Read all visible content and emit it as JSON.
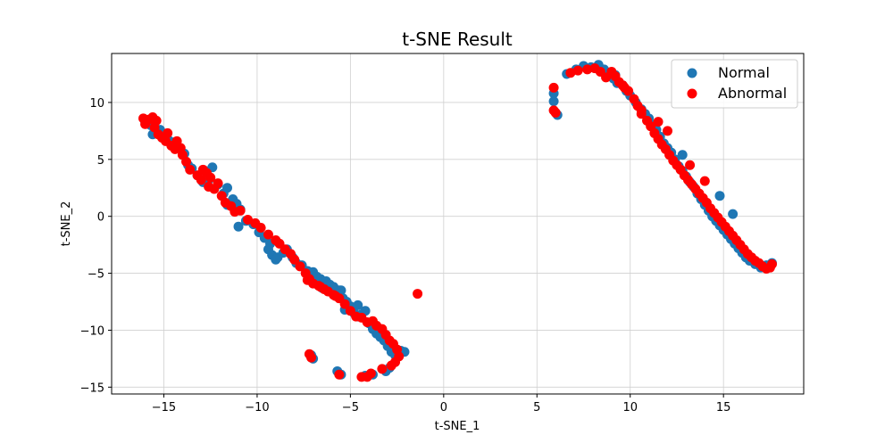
{
  "chart_data": {
    "type": "scatter",
    "title": "t-SNE Result",
    "xlabel": "t-SNE_1",
    "ylabel": "t-SNE_2",
    "xlim": [
      -17.8,
      19.3
    ],
    "ylim": [
      -15.6,
      14.3
    ],
    "xticks": [
      -15,
      -10,
      -5,
      0,
      5,
      10,
      15
    ],
    "xtick_labels": [
      "−15",
      "−10",
      "−5",
      "0",
      "5",
      "10",
      "15"
    ],
    "yticks": [
      -15,
      -10,
      -5,
      0,
      5,
      10
    ],
    "ytick_labels": [
      "−15",
      "−10",
      "−5",
      "0",
      "5",
      "10"
    ],
    "grid": true,
    "legend_position": "top-right",
    "series": [
      {
        "name": "Normal",
        "color": "#1f77b4",
        "points": [
          [
            -16.0,
            8.3
          ],
          [
            -15.7,
            8.0
          ],
          [
            -15.6,
            7.2
          ],
          [
            -15.2,
            7.6
          ],
          [
            -15.0,
            7.0
          ],
          [
            -14.8,
            6.8
          ],
          [
            -14.5,
            6.5
          ],
          [
            -14.2,
            6.0
          ],
          [
            -13.9,
            5.5
          ],
          [
            -13.7,
            4.5
          ],
          [
            -13.5,
            4.2
          ],
          [
            -13.2,
            3.6
          ],
          [
            -12.8,
            4.0
          ],
          [
            -12.6,
            3.2
          ],
          [
            -12.4,
            4.3
          ],
          [
            -12.1,
            2.8
          ],
          [
            -11.8,
            2.0
          ],
          [
            -11.6,
            2.5
          ],
          [
            -11.3,
            1.5
          ],
          [
            -11.1,
            1.1
          ],
          [
            -10.9,
            0.6
          ],
          [
            -11.0,
            -0.9
          ],
          [
            -10.6,
            -0.4
          ],
          [
            -10.2,
            -0.7
          ],
          [
            -9.9,
            -1.4
          ],
          [
            -9.6,
            -1.9
          ],
          [
            -9.3,
            -2.4
          ],
          [
            -9.4,
            -2.9
          ],
          [
            -9.2,
            -3.4
          ],
          [
            -8.9,
            -3.6
          ],
          [
            -8.6,
            -3.2
          ],
          [
            -8.4,
            -2.9
          ],
          [
            -8.1,
            -3.6
          ],
          [
            -7.9,
            -4.1
          ],
          [
            -7.6,
            -4.3
          ],
          [
            -7.3,
            -4.8
          ],
          [
            -7.0,
            -4.9
          ],
          [
            -6.9,
            -5.7
          ],
          [
            -6.6,
            -5.5
          ],
          [
            -6.3,
            -5.7
          ],
          [
            -6.1,
            -6.0
          ],
          [
            -5.9,
            -6.2
          ],
          [
            -5.6,
            -6.5
          ],
          [
            -5.4,
            -7.2
          ],
          [
            -5.2,
            -7.5
          ],
          [
            -5.0,
            -7.9
          ],
          [
            -4.8,
            -8.5
          ],
          [
            -4.6,
            -8.8
          ],
          [
            -4.4,
            -8.6
          ],
          [
            -4.2,
            -8.3
          ],
          [
            -4.0,
            -9.4
          ],
          [
            -3.8,
            -9.9
          ],
          [
            -3.6,
            -10.3
          ],
          [
            -3.4,
            -10.6
          ],
          [
            -3.2,
            -10.9
          ],
          [
            -3.0,
            -11.4
          ],
          [
            -2.8,
            -11.9
          ],
          [
            -2.6,
            -12.2
          ],
          [
            -2.3,
            -11.8
          ],
          [
            -2.1,
            -11.9
          ],
          [
            -2.9,
            -13.3
          ],
          [
            -3.1,
            -13.6
          ],
          [
            -3.8,
            -13.9
          ],
          [
            -4.2,
            -14.0
          ],
          [
            -5.7,
            -13.6
          ],
          [
            -5.5,
            -13.9
          ],
          [
            -7.1,
            -12.2
          ],
          [
            -7.0,
            -12.5
          ],
          [
            -5.3,
            -8.2
          ],
          [
            -4.6,
            -7.8
          ],
          [
            -6.8,
            -5.3
          ],
          [
            -6.5,
            -6.3
          ],
          [
            -5.5,
            -6.5
          ],
          [
            -9.0,
            -3.8
          ],
          [
            -11.6,
            1.0
          ],
          [
            -12.9,
            3.0
          ],
          [
            5.9,
            10.1
          ],
          [
            5.9,
            10.8
          ],
          [
            6.1,
            8.9
          ],
          [
            6.6,
            12.5
          ],
          [
            7.1,
            12.9
          ],
          [
            7.5,
            13.2
          ],
          [
            7.9,
            13.1
          ],
          [
            8.3,
            13.3
          ],
          [
            8.6,
            12.9
          ],
          [
            8.9,
            12.5
          ],
          [
            9.1,
            12.1
          ],
          [
            9.3,
            11.7
          ],
          [
            9.6,
            11.5
          ],
          [
            9.8,
            11.0
          ],
          [
            10.0,
            10.6
          ],
          [
            10.3,
            10.0
          ],
          [
            10.6,
            9.4
          ],
          [
            10.8,
            9.0
          ],
          [
            11.0,
            8.6
          ],
          [
            11.2,
            8.0
          ],
          [
            11.4,
            7.6
          ],
          [
            11.6,
            7.0
          ],
          [
            11.8,
            6.4
          ],
          [
            12.0,
            6.0
          ],
          [
            12.2,
            5.6
          ],
          [
            12.4,
            5.0
          ],
          [
            12.6,
            4.4
          ],
          [
            12.8,
            4.0
          ],
          [
            13.0,
            3.5
          ],
          [
            13.2,
            3.0
          ],
          [
            13.4,
            2.6
          ],
          [
            13.6,
            2.0
          ],
          [
            13.8,
            1.5
          ],
          [
            14.0,
            1.0
          ],
          [
            14.2,
            0.5
          ],
          [
            14.4,
            0.0
          ],
          [
            14.6,
            -0.4
          ],
          [
            14.8,
            -0.8
          ],
          [
            15.0,
            -1.2
          ],
          [
            15.2,
            -1.6
          ],
          [
            15.4,
            -2.0
          ],
          [
            15.6,
            -2.4
          ],
          [
            15.8,
            -2.8
          ],
          [
            16.0,
            -3.2
          ],
          [
            16.2,
            -3.6
          ],
          [
            16.4,
            -3.9
          ],
          [
            16.7,
            -4.2
          ],
          [
            17.0,
            -4.5
          ],
          [
            17.3,
            -4.3
          ],
          [
            17.6,
            -4.1
          ],
          [
            14.8,
            1.8
          ],
          [
            15.5,
            0.2
          ],
          [
            12.8,
            5.4
          ],
          [
            11.3,
            7.9
          ],
          [
            9.2,
            12.4
          ]
        ]
      },
      {
        "name": "Abnormal",
        "color": "#ff0000",
        "points": [
          [
            -16.1,
            8.6
          ],
          [
            -16.0,
            8.1
          ],
          [
            -15.8,
            8.5
          ],
          [
            -15.6,
            8.7
          ],
          [
            -15.4,
            8.4
          ],
          [
            -15.5,
            7.8
          ],
          [
            -15.3,
            7.2
          ],
          [
            -15.1,
            6.9
          ],
          [
            -14.9,
            6.6
          ],
          [
            -14.8,
            7.3
          ],
          [
            -14.6,
            6.2
          ],
          [
            -14.4,
            5.9
          ],
          [
            -14.3,
            6.6
          ],
          [
            -14.1,
            6.0
          ],
          [
            -14.0,
            5.4
          ],
          [
            -13.8,
            4.8
          ],
          [
            -13.6,
            4.1
          ],
          [
            -13.2,
            3.6
          ],
          [
            -13.0,
            3.2
          ],
          [
            -12.9,
            4.1
          ],
          [
            -12.7,
            3.8
          ],
          [
            -12.5,
            3.4
          ],
          [
            -12.6,
            2.6
          ],
          [
            -12.3,
            2.4
          ],
          [
            -12.1,
            2.9
          ],
          [
            -11.9,
            1.8
          ],
          [
            -11.7,
            1.2
          ],
          [
            -11.4,
            0.9
          ],
          [
            -11.2,
            0.4
          ],
          [
            -10.9,
            0.5
          ],
          [
            -10.5,
            -0.3
          ],
          [
            -10.1,
            -0.6
          ],
          [
            -9.8,
            -1.0
          ],
          [
            -9.4,
            -1.6
          ],
          [
            -9.0,
            -2.1
          ],
          [
            -8.8,
            -2.4
          ],
          [
            -8.5,
            -2.9
          ],
          [
            -8.2,
            -3.3
          ],
          [
            -8.0,
            -3.8
          ],
          [
            -7.7,
            -4.4
          ],
          [
            -7.4,
            -5.0
          ],
          [
            -7.2,
            -5.5
          ],
          [
            -7.0,
            -5.9
          ],
          [
            -6.7,
            -6.1
          ],
          [
            -6.4,
            -6.4
          ],
          [
            -6.2,
            -6.6
          ],
          [
            -5.9,
            -6.9
          ],
          [
            -5.6,
            -7.2
          ],
          [
            -5.3,
            -7.7
          ],
          [
            -5.0,
            -8.3
          ],
          [
            -4.7,
            -8.8
          ],
          [
            -4.4,
            -8.9
          ],
          [
            -4.1,
            -9.3
          ],
          [
            -3.8,
            -9.2
          ],
          [
            -3.6,
            -9.6
          ],
          [
            -3.3,
            -9.9
          ],
          [
            -3.1,
            -10.4
          ],
          [
            -2.9,
            -10.9
          ],
          [
            -2.7,
            -11.2
          ],
          [
            -2.5,
            -11.7
          ],
          [
            -2.4,
            -12.3
          ],
          [
            -2.6,
            -12.8
          ],
          [
            -2.8,
            -13.1
          ],
          [
            -3.3,
            -13.4
          ],
          [
            -4.1,
            -14.1
          ],
          [
            -4.4,
            -14.1
          ],
          [
            -5.6,
            -13.9
          ],
          [
            -7.2,
            -12.1
          ],
          [
            -7.1,
            -12.4
          ],
          [
            -1.4,
            -6.8
          ],
          [
            -3.9,
            -13.8
          ],
          [
            -6.6,
            -6.2
          ],
          [
            -7.3,
            -5.6
          ],
          [
            -5.8,
            -7.0
          ],
          [
            5.9,
            11.3
          ],
          [
            5.9,
            9.3
          ],
          [
            6.0,
            9.1
          ],
          [
            6.8,
            12.6
          ],
          [
            7.2,
            12.8
          ],
          [
            7.7,
            12.9
          ],
          [
            8.1,
            13.0
          ],
          [
            8.4,
            12.7
          ],
          [
            8.7,
            12.2
          ],
          [
            9.0,
            12.7
          ],
          [
            9.2,
            12.3
          ],
          [
            9.4,
            11.8
          ],
          [
            9.7,
            11.3
          ],
          [
            9.9,
            11.0
          ],
          [
            10.2,
            10.3
          ],
          [
            10.4,
            9.7
          ],
          [
            10.6,
            9.0
          ],
          [
            10.9,
            8.4
          ],
          [
            11.1,
            7.9
          ],
          [
            11.3,
            7.3
          ],
          [
            11.5,
            6.8
          ],
          [
            11.7,
            6.3
          ],
          [
            11.9,
            5.9
          ],
          [
            12.1,
            5.4
          ],
          [
            12.3,
            4.9
          ],
          [
            12.5,
            4.5
          ],
          [
            12.7,
            4.1
          ],
          [
            12.9,
            3.6
          ],
          [
            13.1,
            3.2
          ],
          [
            13.3,
            2.8
          ],
          [
            13.5,
            2.4
          ],
          [
            13.7,
            2.0
          ],
          [
            13.9,
            1.6
          ],
          [
            14.1,
            1.2
          ],
          [
            14.3,
            0.7
          ],
          [
            14.5,
            0.3
          ],
          [
            14.7,
            -0.1
          ],
          [
            14.9,
            -0.5
          ],
          [
            15.1,
            -0.9
          ],
          [
            15.3,
            -1.3
          ],
          [
            15.5,
            -1.7
          ],
          [
            15.7,
            -2.1
          ],
          [
            15.9,
            -2.5
          ],
          [
            16.1,
            -2.9
          ],
          [
            16.3,
            -3.3
          ],
          [
            16.5,
            -3.6
          ],
          [
            16.7,
            -3.9
          ],
          [
            16.9,
            -4.1
          ],
          [
            17.1,
            -4.4
          ],
          [
            17.3,
            -4.6
          ],
          [
            17.5,
            -4.5
          ],
          [
            17.6,
            -4.2
          ],
          [
            13.2,
            4.5
          ],
          [
            11.5,
            8.3
          ],
          [
            10.6,
            9.3
          ],
          [
            14.0,
            3.1
          ],
          [
            12.0,
            7.5
          ],
          [
            9.6,
            11.5
          ]
        ]
      }
    ]
  }
}
